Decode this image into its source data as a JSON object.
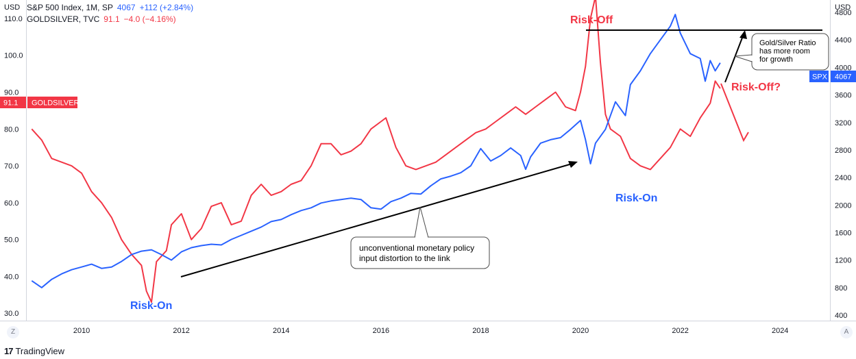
{
  "legend": {
    "row1": {
      "name": "S&P 500 Index, 1M, SP",
      "value": "4067",
      "change": "+112 (+2.84%)"
    },
    "row2": {
      "name": "GOLDSILVER, TVC",
      "value": "91.1",
      "change": "−4.0 (−4.16%)"
    }
  },
  "axis_units": {
    "left": "USD",
    "right": "USD"
  },
  "badges": {
    "left_value": "91.1",
    "left_name": "GOLDSILVER",
    "right_name": "SPX",
    "right_value": "4067"
  },
  "annotations": {
    "risk_off_top": "Risk-Off",
    "risk_on_2009": "Risk-On",
    "risk_on_2021": "Risk-On",
    "risk_off_q": "Risk-Off?",
    "callout_policy_1": "unconventional monetary policy",
    "callout_policy_2": "input distortion to the link",
    "callout_ratio_1": "Gold/Silver Ratio",
    "callout_ratio_2": "has more room",
    "callout_ratio_3": "for growth"
  },
  "footer": {
    "brand": "TradingView",
    "left_button": "Z",
    "right_button": "A"
  },
  "colors": {
    "spx": "#2962ff",
    "goldsilver": "#f23645",
    "annotation_black": "#000000"
  },
  "chart_data": {
    "type": "line",
    "x_label": "",
    "y_label_left": "USD",
    "y_label_right": "USD",
    "x_ticks": [
      "2010",
      "2012",
      "2014",
      "2016",
      "2018",
      "2020",
      "2022",
      "2024"
    ],
    "xlim": [
      2008.9,
      2025.0
    ],
    "y_left_ticks": [
      "30.0",
      "40.0",
      "50.0",
      "60.0",
      "70.0",
      "80.0",
      "90.0",
      "100.0",
      "110.0"
    ],
    "y_left_range": [
      28,
      115
    ],
    "y_right_ticks": [
      "400",
      "800",
      "1200",
      "1600",
      "2000",
      "2400",
      "2800",
      "3200",
      "3600",
      "4000",
      "4400",
      "4800"
    ],
    "y_right_range": [
      320,
      4980
    ],
    "grid": false,
    "series": [
      {
        "name": "GOLDSILVER",
        "axis": "left",
        "points": [
          [
            2009.0,
            80
          ],
          [
            2009.2,
            77
          ],
          [
            2009.4,
            72
          ],
          [
            2009.6,
            71
          ],
          [
            2009.8,
            70
          ],
          [
            2010.0,
            68
          ],
          [
            2010.2,
            63
          ],
          [
            2010.4,
            60
          ],
          [
            2010.6,
            56
          ],
          [
            2010.8,
            50
          ],
          [
            2011.0,
            46
          ],
          [
            2011.2,
            43
          ],
          [
            2011.3,
            36
          ],
          [
            2011.4,
            33
          ],
          [
            2011.5,
            44
          ],
          [
            2011.7,
            47
          ],
          [
            2011.8,
            54
          ],
          [
            2012.0,
            57
          ],
          [
            2012.2,
            50
          ],
          [
            2012.4,
            53
          ],
          [
            2012.6,
            59
          ],
          [
            2012.8,
            60
          ],
          [
            2013.0,
            54
          ],
          [
            2013.2,
            55
          ],
          [
            2013.4,
            62
          ],
          [
            2013.6,
            65
          ],
          [
            2013.8,
            62
          ],
          [
            2014.0,
            63
          ],
          [
            2014.2,
            65
          ],
          [
            2014.4,
            66
          ],
          [
            2014.6,
            70
          ],
          [
            2014.8,
            76
          ],
          [
            2015.0,
            76
          ],
          [
            2015.2,
            73
          ],
          [
            2015.4,
            74
          ],
          [
            2015.6,
            76
          ],
          [
            2015.8,
            80
          ],
          [
            2016.0,
            82
          ],
          [
            2016.1,
            83
          ],
          [
            2016.3,
            75
          ],
          [
            2016.5,
            70
          ],
          [
            2016.7,
            69
          ],
          [
            2016.9,
            70
          ],
          [
            2017.1,
            71
          ],
          [
            2017.3,
            73
          ],
          [
            2017.5,
            75
          ],
          [
            2017.7,
            77
          ],
          [
            2017.9,
            79
          ],
          [
            2018.1,
            80
          ],
          [
            2018.3,
            82
          ],
          [
            2018.5,
            84
          ],
          [
            2018.7,
            86
          ],
          [
            2018.9,
            84
          ],
          [
            2019.1,
            86
          ],
          [
            2019.3,
            88
          ],
          [
            2019.5,
            90
          ],
          [
            2019.7,
            86
          ],
          [
            2019.9,
            85
          ],
          [
            2020.0,
            90
          ],
          [
            2020.1,
            97
          ],
          [
            2020.2,
            110
          ],
          [
            2020.3,
            116
          ],
          [
            2020.4,
            98
          ],
          [
            2020.5,
            84
          ],
          [
            2020.6,
            80
          ],
          [
            2020.8,
            78
          ],
          [
            2021.0,
            72
          ],
          [
            2021.2,
            70
          ],
          [
            2021.4,
            69
          ],
          [
            2021.6,
            72
          ],
          [
            2021.8,
            75
          ],
          [
            2022.0,
            80
          ],
          [
            2022.2,
            78
          ],
          [
            2022.4,
            83
          ],
          [
            2022.6,
            87
          ],
          [
            2022.7,
            93
          ],
          [
            2022.8,
            91
          ]
        ]
      },
      {
        "name": "S&P 500 Index",
        "axis": "right",
        "points": [
          [
            2009.0,
            900
          ],
          [
            2009.2,
            800
          ],
          [
            2009.4,
            920
          ],
          [
            2009.6,
            1000
          ],
          [
            2009.8,
            1060
          ],
          [
            2010.0,
            1100
          ],
          [
            2010.2,
            1140
          ],
          [
            2010.4,
            1080
          ],
          [
            2010.6,
            1100
          ],
          [
            2010.8,
            1180
          ],
          [
            2011.0,
            1280
          ],
          [
            2011.2,
            1330
          ],
          [
            2011.4,
            1350
          ],
          [
            2011.6,
            1280
          ],
          [
            2011.8,
            1200
          ],
          [
            2012.0,
            1320
          ],
          [
            2012.2,
            1380
          ],
          [
            2012.4,
            1410
          ],
          [
            2012.6,
            1430
          ],
          [
            2012.8,
            1420
          ],
          [
            2013.0,
            1500
          ],
          [
            2013.2,
            1560
          ],
          [
            2013.4,
            1620
          ],
          [
            2013.6,
            1680
          ],
          [
            2013.8,
            1760
          ],
          [
            2014.0,
            1790
          ],
          [
            2014.2,
            1860
          ],
          [
            2014.4,
            1920
          ],
          [
            2014.6,
            1960
          ],
          [
            2014.8,
            2030
          ],
          [
            2015.0,
            2060
          ],
          [
            2015.2,
            2080
          ],
          [
            2015.4,
            2100
          ],
          [
            2015.6,
            2080
          ],
          [
            2015.8,
            1960
          ],
          [
            2016.0,
            1940
          ],
          [
            2016.2,
            2050
          ],
          [
            2016.4,
            2100
          ],
          [
            2016.6,
            2170
          ],
          [
            2016.8,
            2160
          ],
          [
            2017.0,
            2280
          ],
          [
            2017.2,
            2380
          ],
          [
            2017.4,
            2420
          ],
          [
            2017.6,
            2470
          ],
          [
            2017.8,
            2570
          ],
          [
            2018.0,
            2820
          ],
          [
            2018.2,
            2640
          ],
          [
            2018.4,
            2720
          ],
          [
            2018.6,
            2830
          ],
          [
            2018.8,
            2720
          ],
          [
            2018.9,
            2520
          ],
          [
            2019.0,
            2700
          ],
          [
            2019.2,
            2900
          ],
          [
            2019.4,
            2950
          ],
          [
            2019.6,
            2980
          ],
          [
            2019.8,
            3100
          ],
          [
            2020.0,
            3230
          ],
          [
            2020.1,
            2950
          ],
          [
            2020.2,
            2600
          ],
          [
            2020.3,
            2900
          ],
          [
            2020.5,
            3100
          ],
          [
            2020.7,
            3500
          ],
          [
            2020.9,
            3300
          ],
          [
            2021.0,
            3750
          ],
          [
            2021.2,
            3950
          ],
          [
            2021.4,
            4200
          ],
          [
            2021.6,
            4400
          ],
          [
            2021.8,
            4600
          ],
          [
            2021.9,
            4770
          ],
          [
            2022.0,
            4500
          ],
          [
            2022.2,
            4200
          ],
          [
            2022.4,
            4130
          ],
          [
            2022.5,
            3800
          ],
          [
            2022.6,
            4100
          ],
          [
            2022.7,
            3950
          ],
          [
            2022.8,
            4067
          ]
        ]
      }
    ]
  }
}
